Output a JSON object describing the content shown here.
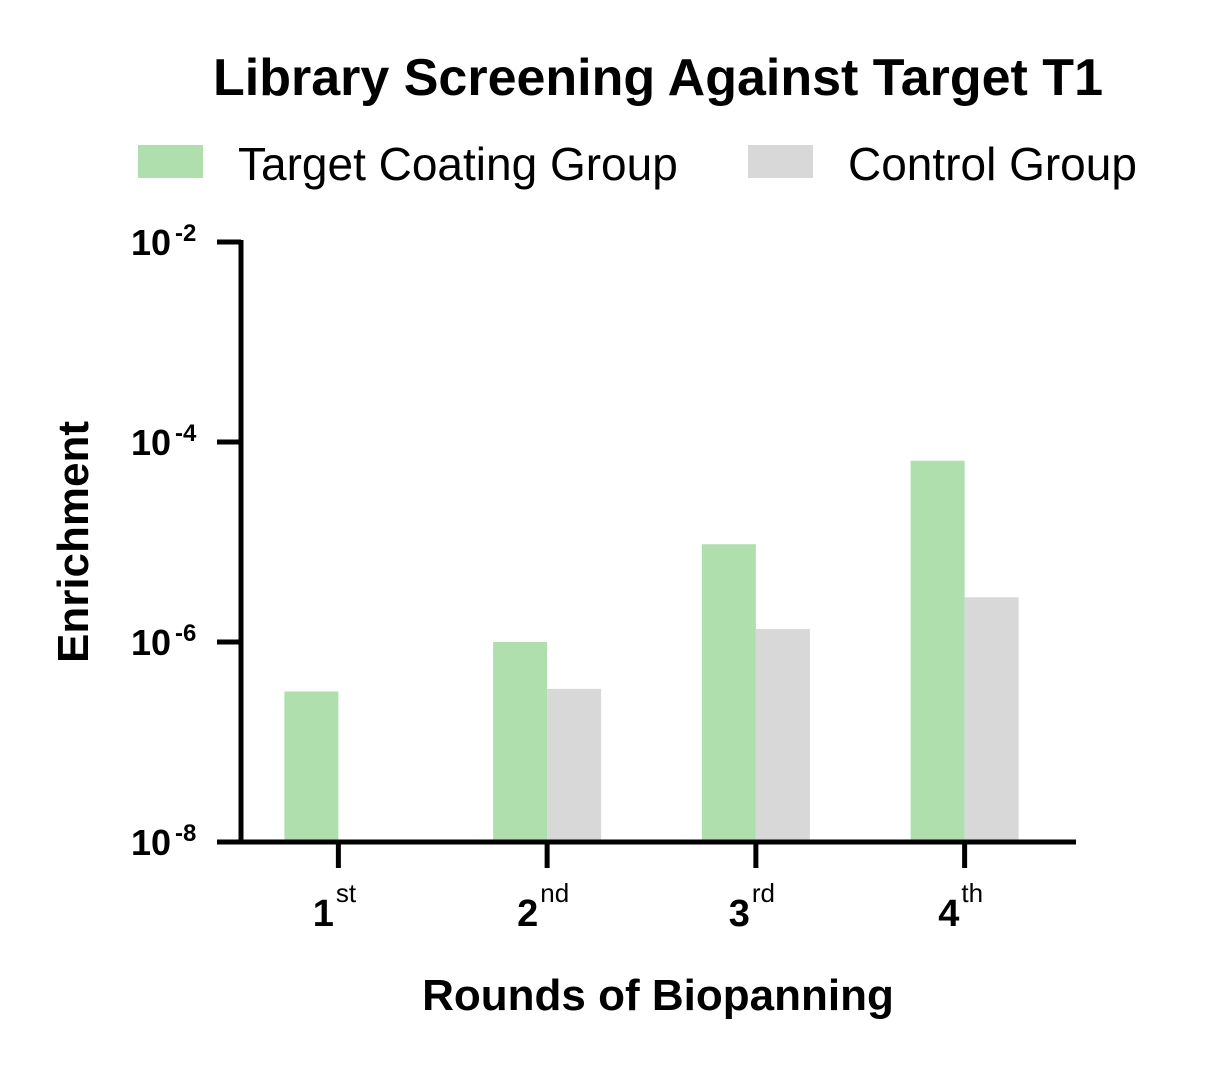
{
  "chart_data": {
    "type": "bar",
    "title": "Library Screening Against Target T1",
    "xlabel": "Rounds of Biopanning",
    "ylabel": "Enrichment",
    "yscale": "log",
    "ylim": [
      1e-08,
      0.01
    ],
    "yticks": [
      {
        "base": "10",
        "exp": "-8",
        "value": 1e-08
      },
      {
        "base": "10",
        "exp": "-6",
        "value": 1e-06
      },
      {
        "base": "10",
        "exp": "-4",
        "value": 0.0001
      },
      {
        "base": "10",
        "exp": "-2",
        "value": 0.01
      }
    ],
    "categories": [
      {
        "num": "1",
        "suffix": "st"
      },
      {
        "num": "2",
        "suffix": "nd"
      },
      {
        "num": "3",
        "suffix": "rd"
      },
      {
        "num": "4",
        "suffix": "th"
      }
    ],
    "series": [
      {
        "name": "Target Coating Group",
        "color": "#aedfad",
        "values": [
          3.2e-07,
          1e-06,
          9.5e-06,
          6.5e-05
        ]
      },
      {
        "name": "Control Group",
        "color": "#d8d8d8",
        "values": [
          null,
          3.4e-07,
          1.35e-06,
          2.8e-06
        ]
      }
    ],
    "legend_position": "top",
    "grid": false
  }
}
